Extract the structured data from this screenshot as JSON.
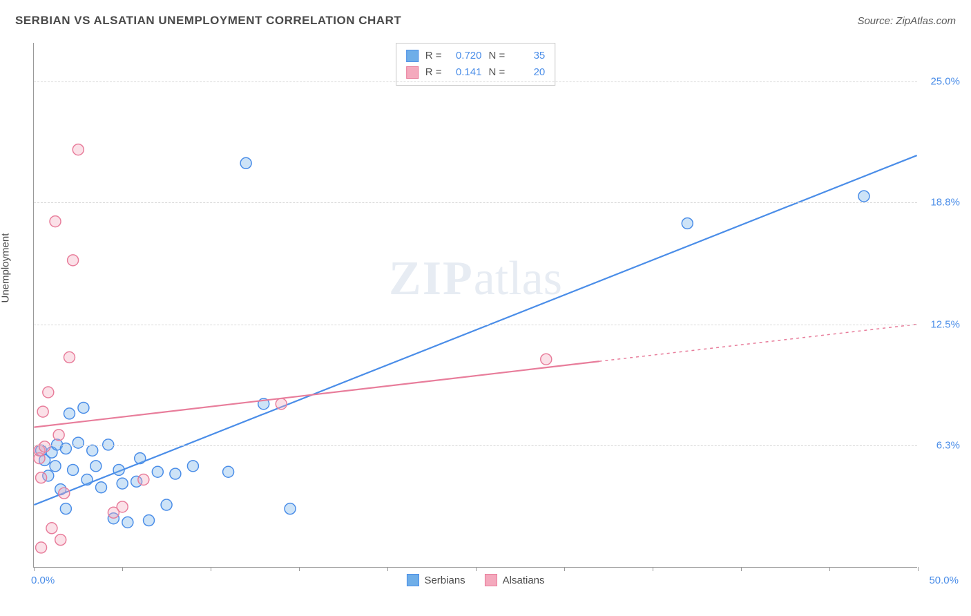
{
  "title": "SERBIAN VS ALSATIAN UNEMPLOYMENT CORRELATION CHART",
  "source": "Source: ZipAtlas.com",
  "ylabel": "Unemployment",
  "watermark_a": "ZIP",
  "watermark_b": "atlas",
  "chart": {
    "type": "scatter-with-regression",
    "background_color": "#ffffff",
    "grid_color": "#d8d8d8",
    "axis_color": "#999999",
    "xlim": [
      0,
      50
    ],
    "ylim": [
      0,
      27
    ],
    "x_tick_positions": [
      0,
      5,
      10,
      15,
      20,
      25,
      30,
      35,
      40,
      45,
      50
    ],
    "y_gridlines": [
      6.3,
      12.5,
      18.8,
      25.0
    ],
    "y_tick_labels": [
      "6.3%",
      "12.5%",
      "18.8%",
      "25.0%"
    ],
    "x_min_label": "0.0%",
    "x_max_label": "50.0%",
    "tick_label_color": "#4a8de8",
    "tick_label_fontsize": 15,
    "marker_radius": 8,
    "marker_stroke_width": 1.5,
    "marker_fill_opacity": 0.35,
    "line_width": 2.2,
    "series": [
      {
        "name": "Serbians",
        "color": "#6faee8",
        "stroke": "#4a8de8",
        "r_label": "R =",
        "r_value": "0.720",
        "n_label": "N =",
        "n_value": "35",
        "regression": {
          "x1": 0,
          "y1": 3.2,
          "x2": 50,
          "y2": 21.2,
          "dash": false
        },
        "points": [
          [
            0.4,
            6.0
          ],
          [
            0.6,
            5.5
          ],
          [
            0.8,
            4.7
          ],
          [
            1.0,
            5.9
          ],
          [
            1.2,
            5.2
          ],
          [
            1.3,
            6.3
          ],
          [
            1.5,
            4.0
          ],
          [
            1.8,
            6.1
          ],
          [
            1.8,
            3.0
          ],
          [
            2.0,
            7.9
          ],
          [
            2.2,
            5.0
          ],
          [
            2.5,
            6.4
          ],
          [
            2.8,
            8.2
          ],
          [
            3.0,
            4.5
          ],
          [
            3.3,
            6.0
          ],
          [
            3.5,
            5.2
          ],
          [
            3.8,
            4.1
          ],
          [
            4.2,
            6.3
          ],
          [
            4.5,
            2.5
          ],
          [
            4.8,
            5.0
          ],
          [
            5.0,
            4.3
          ],
          [
            5.3,
            2.3
          ],
          [
            5.8,
            4.4
          ],
          [
            6.0,
            5.6
          ],
          [
            6.5,
            2.4
          ],
          [
            7.0,
            4.9
          ],
          [
            7.5,
            3.2
          ],
          [
            8.0,
            4.8
          ],
          [
            9.0,
            5.2
          ],
          [
            11.0,
            4.9
          ],
          [
            12.0,
            20.8
          ],
          [
            13.0,
            8.4
          ],
          [
            14.5,
            3.0
          ],
          [
            37.0,
            17.7
          ],
          [
            47.0,
            19.1
          ]
        ]
      },
      {
        "name": "Alsatians",
        "color": "#f4a9bd",
        "stroke": "#e87d9b",
        "r_label": "R =",
        "r_value": "0.141",
        "n_label": "N =",
        "n_value": "20",
        "regression": {
          "x1": 0,
          "y1": 7.2,
          "x2": 50,
          "y2": 12.5,
          "dash_after_x": 32
        },
        "points": [
          [
            0.3,
            5.6
          ],
          [
            0.3,
            6.0
          ],
          [
            0.4,
            4.6
          ],
          [
            0.4,
            1.0
          ],
          [
            0.5,
            8.0
          ],
          [
            0.6,
            6.2
          ],
          [
            0.8,
            9.0
          ],
          [
            1.0,
            2.0
          ],
          [
            1.2,
            17.8
          ],
          [
            1.4,
            6.8
          ],
          [
            1.5,
            1.4
          ],
          [
            1.7,
            3.8
          ],
          [
            2.0,
            10.8
          ],
          [
            2.2,
            15.8
          ],
          [
            2.5,
            21.5
          ],
          [
            4.5,
            2.8
          ],
          [
            5.0,
            3.1
          ],
          [
            6.2,
            4.5
          ],
          [
            14.0,
            8.4
          ],
          [
            29.0,
            10.7
          ]
        ]
      }
    ],
    "legend_bottom": [
      "Serbians",
      "Alsatians"
    ]
  }
}
